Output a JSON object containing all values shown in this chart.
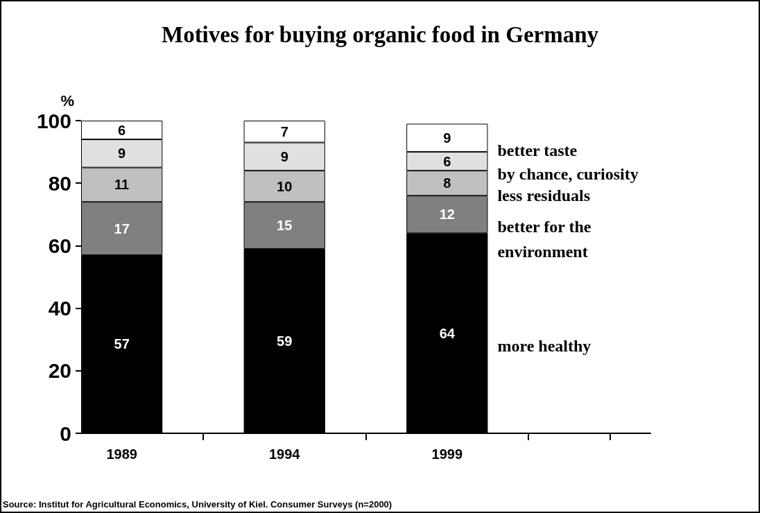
{
  "chart_data": {
    "type": "bar",
    "title": "Motives for buying organic food in Germany",
    "ylabel": "%",
    "categories": [
      "1989",
      null,
      "1994",
      null,
      "1999",
      null,
      null
    ],
    "stacked": true,
    "data_labels": true,
    "legend": false,
    "grid": false,
    "ylim": [
      0,
      100
    ],
    "yticks": [
      0,
      20,
      40,
      60,
      80,
      100
    ],
    "series": [
      {
        "name": "more healthy",
        "color": "#000000",
        "values": [
          57,
          null,
          59,
          null,
          64,
          null,
          null
        ]
      },
      {
        "name": "better for the environment",
        "color": "#808080",
        "values": [
          17,
          null,
          15,
          null,
          12,
          null,
          null
        ]
      },
      {
        "name": "less residuals",
        "color": "#c0c0c0",
        "values": [
          11,
          null,
          10,
          null,
          8,
          null,
          null
        ]
      },
      {
        "name": "by chance, curiosity",
        "color": "#e0e0e0",
        "values": [
          9,
          null,
          9,
          null,
          6,
          null,
          null
        ]
      },
      {
        "name": "better taste",
        "color": "#ffffff",
        "values": [
          6,
          null,
          7,
          null,
          9,
          null,
          null
        ]
      }
    ],
    "annotations": [
      "Source: Institut for Agricultural Economics, University of Kiel. Consumer Surveys (n=2000)"
    ]
  }
}
